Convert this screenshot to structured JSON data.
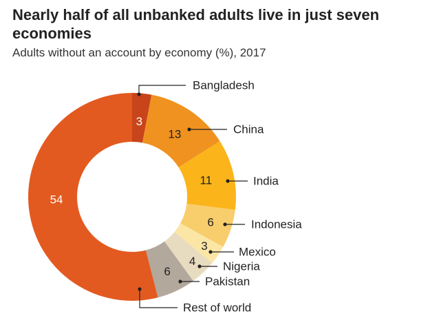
{
  "chart_data": {
    "type": "pie",
    "donut": true,
    "title": "Nearly half of all unbanked adults live in just seven economies",
    "subtitle": "Adults without an account by economy (%), 2017",
    "categories": [
      "Bangladesh",
      "China",
      "India",
      "Indonesia",
      "Mexico",
      "Nigeria",
      "Pakistan",
      "Rest of world"
    ],
    "values": [
      3,
      13,
      11,
      6,
      3,
      4,
      6,
      54
    ],
    "value_labels": [
      "3",
      "13",
      "11",
      "6",
      "3",
      "4",
      "6",
      "54"
    ],
    "colors": [
      "#c8441a",
      "#f0921f",
      "#fbb41a",
      "#f8cd6c",
      "#fbe6a6",
      "#e8dcc0",
      "#b3a89c",
      "#e35a20"
    ],
    "value_label_colors": [
      "#ffffff",
      "#222222",
      "#222222",
      "#222222",
      "#222222",
      "#222222",
      "#222222",
      "#ffffff"
    ]
  }
}
